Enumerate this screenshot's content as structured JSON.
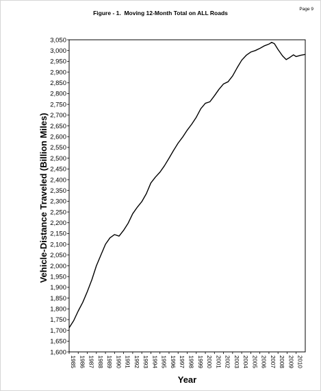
{
  "page": {
    "title": "Figure - 1.  Moving 12-Month Total on ALL Roads",
    "page_number": "Page 9"
  },
  "chart_data": {
    "type": "line",
    "title": "Figure - 1.  Moving 12-Month Total on ALL Roads",
    "xlabel": "Year",
    "ylabel": "Vehicle-Distance Traveled (Billion Miles)",
    "xlim": [
      1985,
      2011
    ],
    "ylim": [
      1600,
      3050
    ],
    "ytick_step": 50,
    "x_tick_labels": [
      "1985",
      "1986",
      "1987",
      "1988",
      "1989",
      "1990",
      "1991",
      "1992",
      "1993",
      "1994",
      "1995",
      "1996",
      "1997",
      "1998",
      "1999",
      "2000",
      "2001",
      "2002",
      "2003",
      "2004",
      "2005",
      "2006",
      "2007",
      "2008",
      "2009",
      "2010"
    ],
    "grid": false,
    "line_color": "#000000",
    "series": [
      {
        "x": [
          1985,
          1985.5,
          1986,
          1986.5,
          1987,
          1987.5,
          1988,
          1988.5,
          1989,
          1989.5,
          1990,
          1990.5,
          1991,
          1991.5,
          1992,
          1992.5,
          1993,
          1993.5,
          1994,
          1994.5,
          1995,
          1995.5,
          1996,
          1996.5,
          1997,
          1997.5,
          1998,
          1998.5,
          1999,
          1999.5,
          2000,
          2000.5,
          2001,
          2001.5,
          2002,
          2002.5,
          2003,
          2003.5,
          2004,
          2004.5,
          2005,
          2005.5,
          2006,
          2006.5,
          2007,
          2007.3,
          2007.6,
          2008,
          2008.5,
          2008.9,
          2009.3,
          2009.7,
          2010,
          2010.5,
          2011
        ],
        "values": [
          1712,
          1745,
          1790,
          1830,
          1880,
          1935,
          2000,
          2050,
          2100,
          2130,
          2145,
          2138,
          2165,
          2198,
          2242,
          2272,
          2298,
          2335,
          2385,
          2412,
          2435,
          2465,
          2500,
          2536,
          2570,
          2598,
          2630,
          2658,
          2690,
          2730,
          2755,
          2762,
          2790,
          2820,
          2845,
          2855,
          2882,
          2920,
          2955,
          2978,
          2993,
          3000,
          3010,
          3022,
          3030,
          3038,
          3032,
          3005,
          2975,
          2958,
          2968,
          2980,
          2972,
          2978,
          2982
        ]
      }
    ]
  }
}
